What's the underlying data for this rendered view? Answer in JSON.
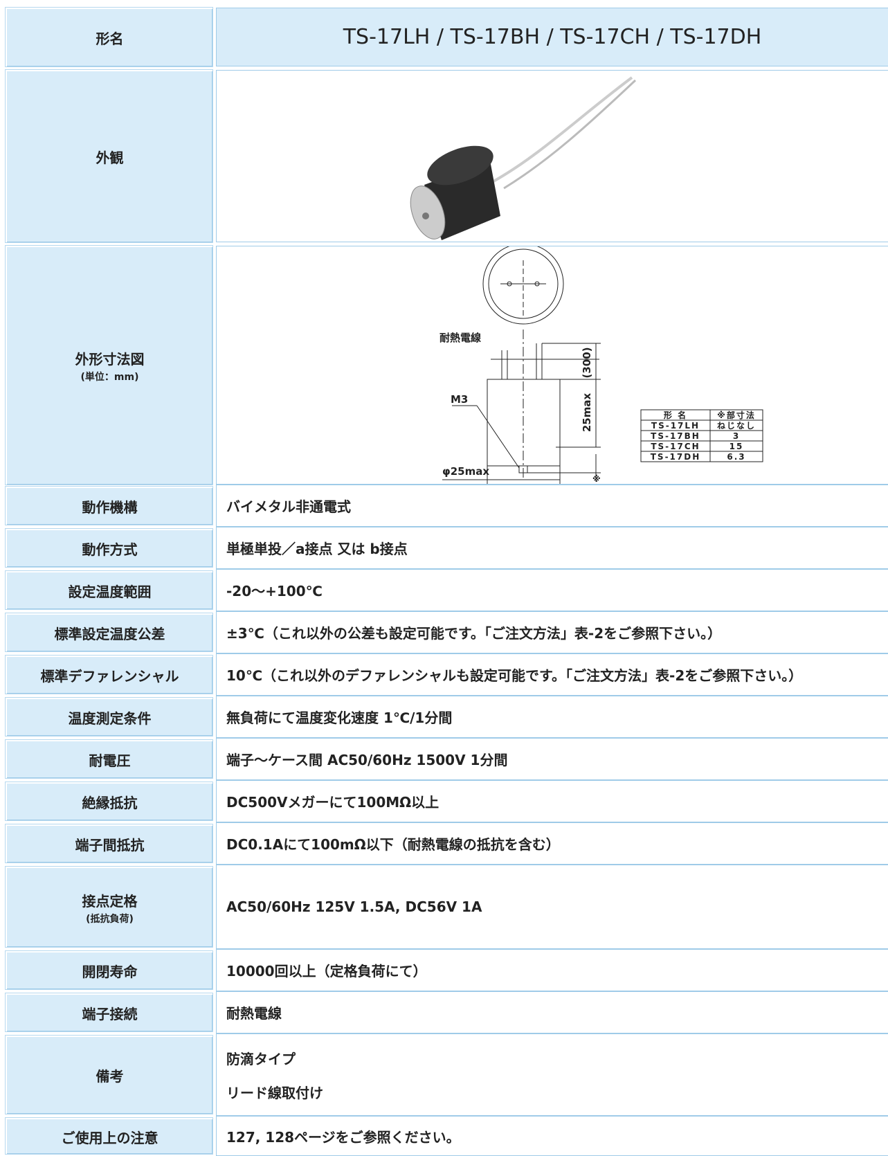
{
  "header": {
    "label": "形名",
    "models": "TS-17LH / TS-17BH / TS-17CH / TS-17DH"
  },
  "appearance": {
    "label": "外観"
  },
  "dimensions": {
    "label": "外形寸法図",
    "unit": "(単位：mm)",
    "wire_label": "耐熱電線",
    "lead_length": "(300)",
    "height": "25max",
    "screw": "M3",
    "diameter": "φ25max",
    "note_mark": "※",
    "table": {
      "headers": [
        "形 名",
        "※部寸法"
      ],
      "rows": [
        [
          "TS-17LH",
          "ねじなし"
        ],
        [
          "TS-17BH",
          "3"
        ],
        [
          "TS-17CH",
          "15"
        ],
        [
          "TS-17DH",
          "6.3"
        ]
      ]
    }
  },
  "specs": [
    {
      "label": "動作機構",
      "value": "バイメタル非通電式"
    },
    {
      "label": "動作方式",
      "value": "単極単投／a接点 又は b接点"
    },
    {
      "label": "設定温度範囲",
      "value": "-20～+100℃"
    },
    {
      "label": "標準設定温度公差",
      "value": "±3℃（これ以外の公差も設定可能です。「ご注文方法」表-2をご参照下さい。）"
    },
    {
      "label": "標準デファレンシャル",
      "value": "10℃（これ以外のデファレンシャルも設定可能です。「ご注文方法」表-2をご参照下さい。）"
    },
    {
      "label": "温度測定条件",
      "value": "無負荷にて温度変化速度 1℃/1分間"
    },
    {
      "label": "耐電圧",
      "value": "端子～ケース間 AC50/60Hz 1500V 1分間"
    },
    {
      "label": "絶縁抵抗",
      "value": "DC500Vメガーにて100MΩ以上"
    },
    {
      "label": "端子間抵抗",
      "value": "DC0.1Aにて100mΩ以下（耐熱電線の抵抗を含む）"
    },
    {
      "label": "接点定格",
      "note": "(抵抗負荷)",
      "value": "AC50/60Hz 125V 1.5A, DC56V 1A"
    },
    {
      "label": "開閉寿命",
      "value": "10000回以上（定格負荷にて）"
    },
    {
      "label": "端子接続",
      "value": "耐熱電線"
    },
    {
      "label": "備考",
      "lines": [
        "防滴タイプ",
        "リード線取付け"
      ]
    },
    {
      "label": "ご使用上の注意",
      "value": "127, 128ページをご参照ください。"
    }
  ]
}
